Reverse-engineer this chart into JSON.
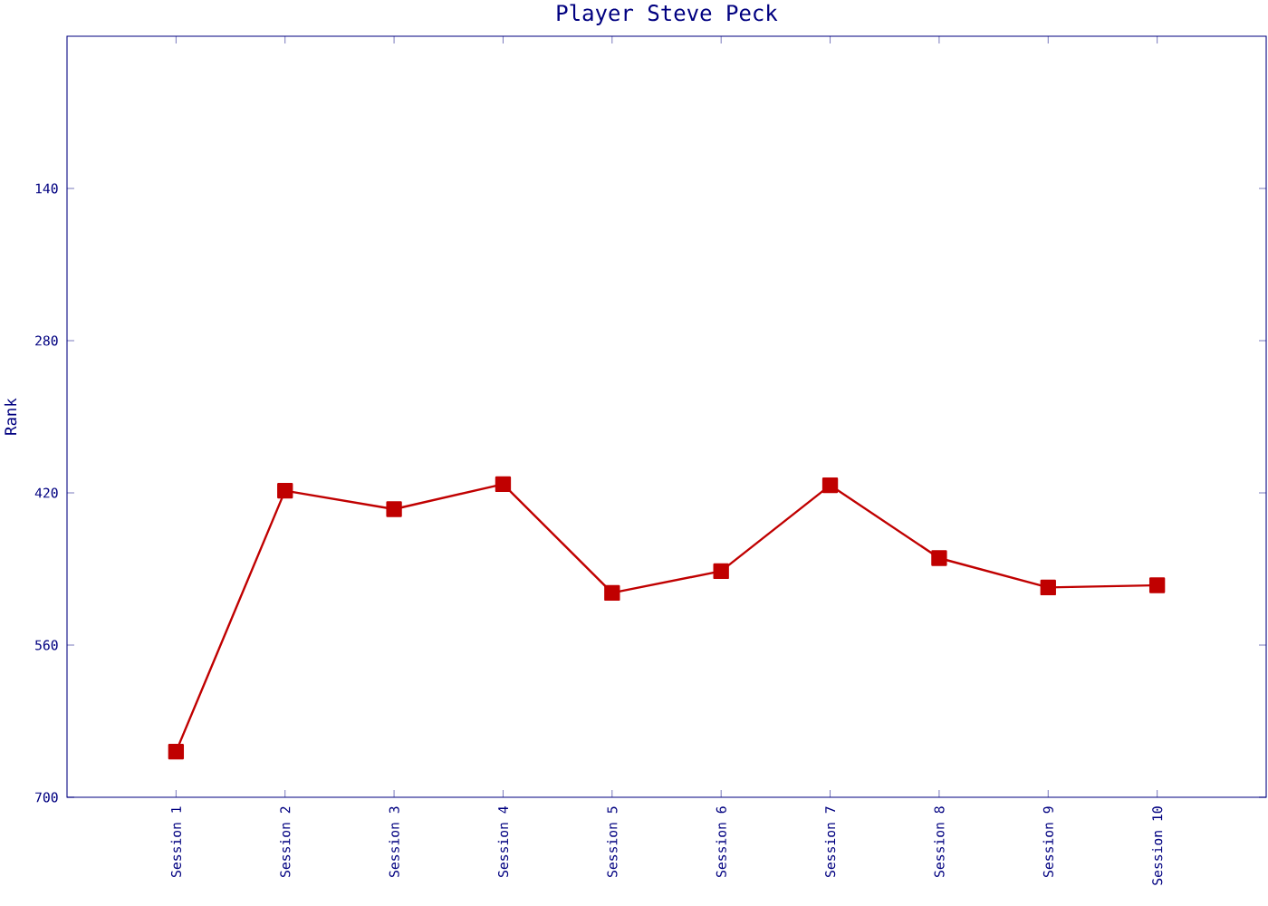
{
  "chart_data": {
    "type": "line",
    "title": "Player Steve Peck",
    "ylabel": "Rank",
    "categories": [
      "Session 1",
      "Session 2",
      "Session 3",
      "Session 4",
      "Session 5",
      "Session 6",
      "Session 7",
      "Session 8",
      "Session 9",
      "Session 10"
    ],
    "values": [
      658,
      418,
      435,
      412,
      512,
      492,
      413,
      480,
      507,
      505
    ],
    "color": "#c00000",
    "marker": "square",
    "line_style": "solid",
    "ylim": [
      700,
      0
    ],
    "yticks": [
      140,
      280,
      420,
      560,
      700
    ],
    "grid": false
  }
}
